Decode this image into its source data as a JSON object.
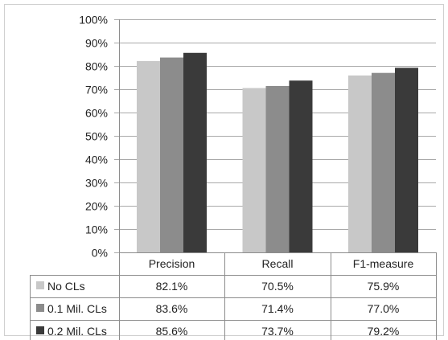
{
  "chart_data": {
    "type": "bar",
    "title": "",
    "xlabel": "",
    "ylabel": "",
    "ylim": [
      0,
      100
    ],
    "y_ticks": [
      "0%",
      "10%",
      "20%",
      "30%",
      "40%",
      "50%",
      "60%",
      "70%",
      "80%",
      "90%",
      "100%"
    ],
    "categories": [
      "Precision",
      "Recall",
      "F1-measure"
    ],
    "series": [
      {
        "name": "No CLs",
        "color": "#c8c8c8",
        "values": [
          82.1,
          70.5,
          75.9
        ],
        "labels": [
          "82.1%",
          "70.5%",
          "75.9%"
        ]
      },
      {
        "name": "0.1 Mil. CLs",
        "color": "#8c8c8c",
        "values": [
          83.6,
          71.4,
          77.0
        ],
        "labels": [
          "83.6%",
          "71.4%",
          "77.0%"
        ]
      },
      {
        "name": "0.2 Mil. CLs",
        "color": "#3a3a3a",
        "values": [
          85.6,
          73.7,
          79.2
        ],
        "labels": [
          "85.6%",
          "73.7%",
          "79.2%"
        ]
      }
    ],
    "grid": "horizontal",
    "legend": "data table below chart"
  }
}
